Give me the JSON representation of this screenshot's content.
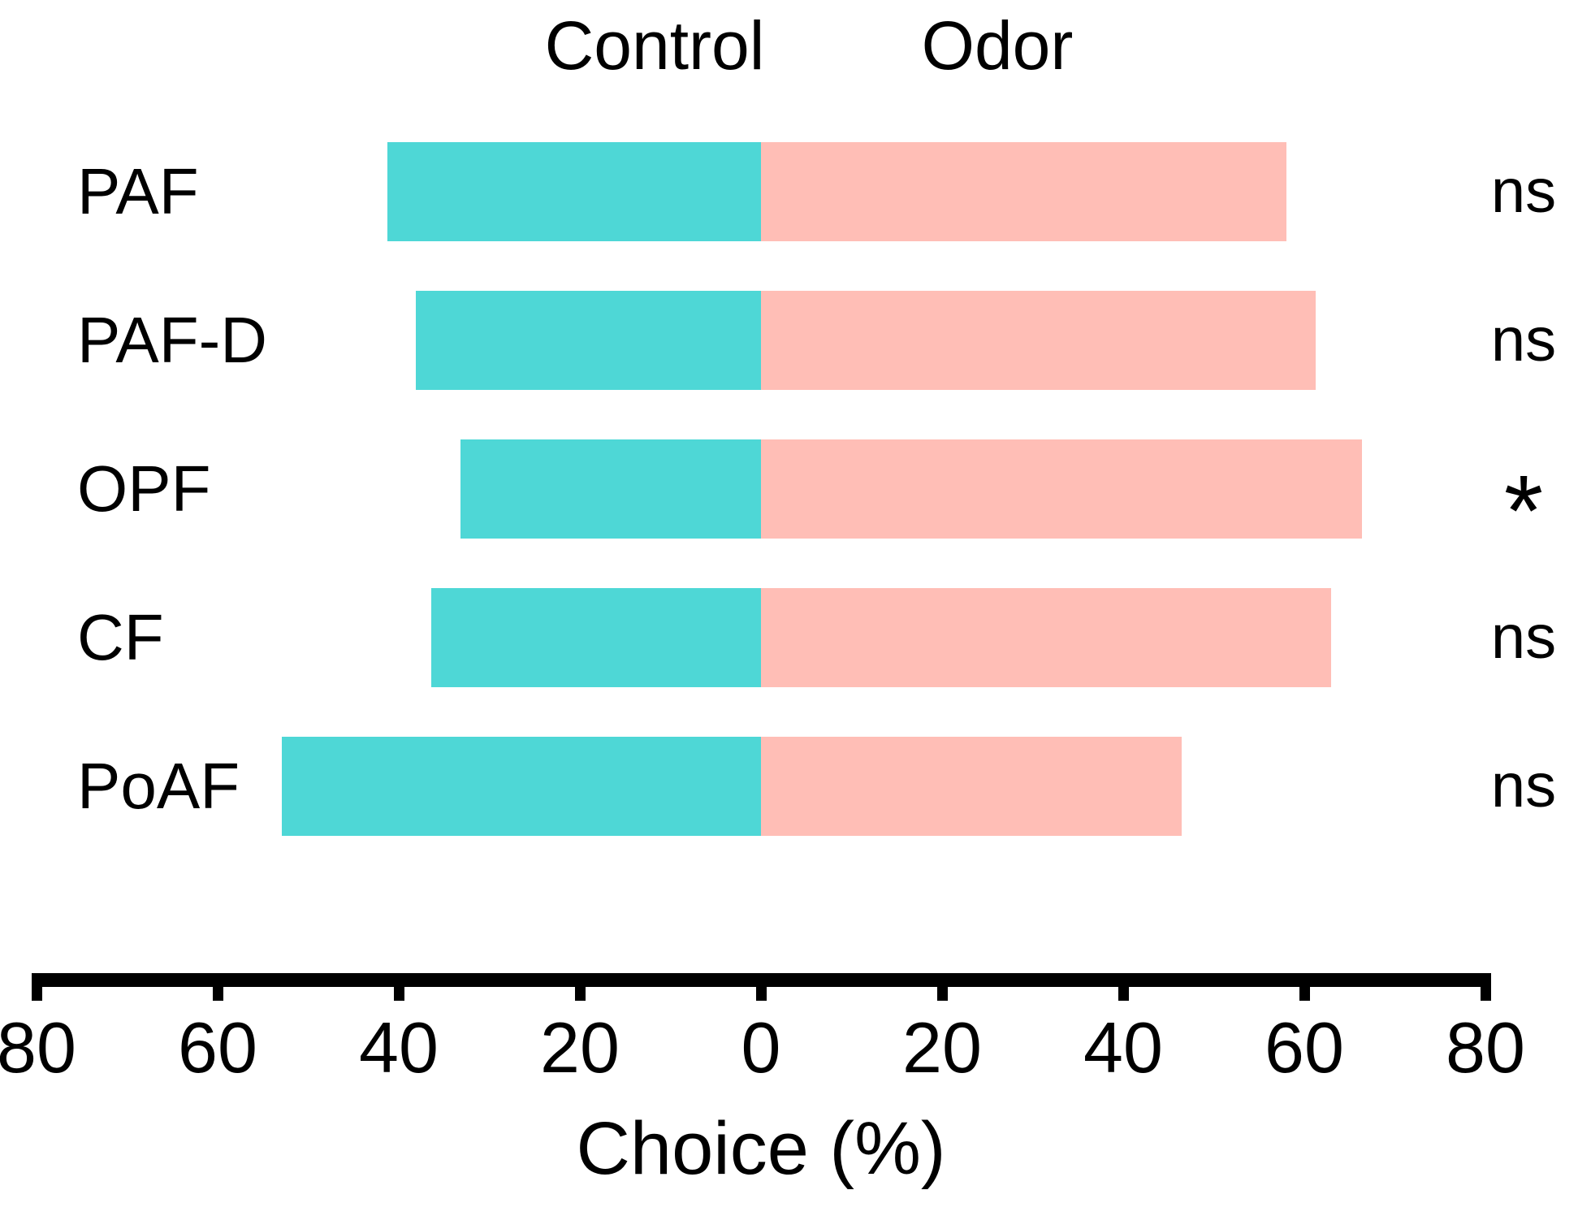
{
  "chart_data": {
    "type": "bar",
    "variant": "horizontal-diverging",
    "title_left": "Control",
    "title_right": "Odor",
    "categories": [
      "PAF",
      "PAF-D",
      "OPF",
      "CF",
      "PoAF"
    ],
    "series": [
      {
        "name": "Control",
        "direction": "left",
        "color": "#4ED7D6",
        "values": [
          41.3,
          38.1,
          33.2,
          36.4,
          52.9
        ]
      },
      {
        "name": "Odor",
        "direction": "right",
        "color": "#FFBEB6",
        "values": [
          58.0,
          61.3,
          66.4,
          63.0,
          46.5
        ]
      }
    ],
    "annotations": [
      "ns",
      "ns",
      "*",
      "ns",
      "ns"
    ],
    "xlabel": "Choice (%)",
    "axis": {
      "center_value": 0,
      "max_each_side": 80,
      "tick_step": 20,
      "tick_values": [
        -80,
        -60,
        -40,
        -20,
        0,
        20,
        40,
        60,
        80
      ],
      "tick_labels": [
        "80",
        "60",
        "40",
        "20",
        "0",
        "20",
        "40",
        "60",
        "80"
      ],
      "color": "#000000"
    },
    "grid": false,
    "legend_position": "top-as-column-headers",
    "text_color": "#000000",
    "background": "#FFFFFF"
  }
}
